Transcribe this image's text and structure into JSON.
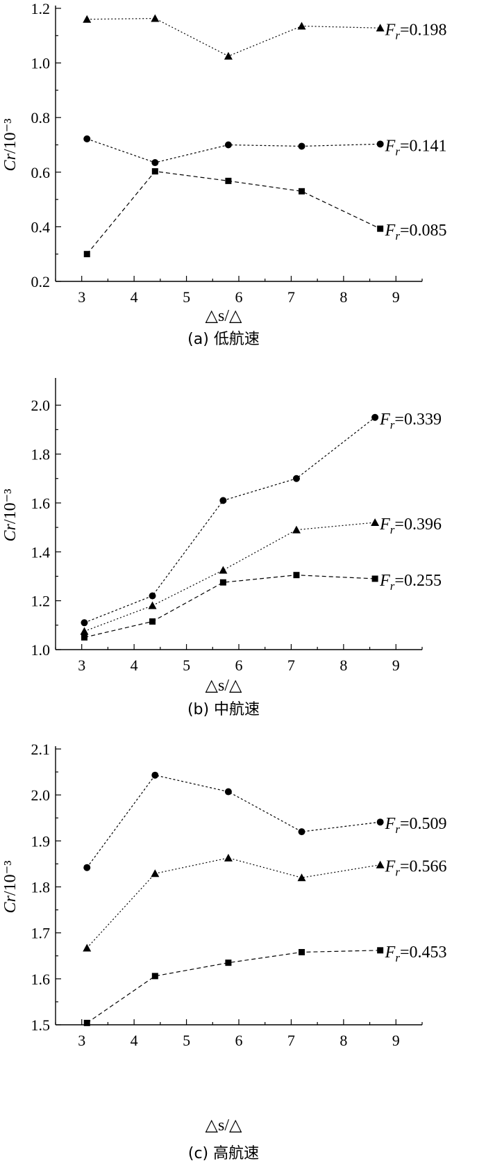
{
  "chart_data": [
    {
      "type": "line",
      "caption": "(a) 低航速",
      "xlabel": "△s/△",
      "ylabel": "Cr/10⁻³",
      "xlim": [
        2.5,
        9.5
      ],
      "ylim": [
        0.2,
        1.2
      ],
      "xticks": [
        "3",
        "4",
        "5",
        "6",
        "7",
        "8",
        "9"
      ],
      "yticks": [
        "0.2",
        "0.4",
        "0.6",
        "0.8",
        "1.0",
        "1.2"
      ],
      "series": [
        {
          "name": "0.198",
          "marker": "triangle",
          "x": [
            3.1,
            4.4,
            5.8,
            7.2,
            8.7
          ],
          "values": [
            1.16,
            1.163,
            1.025,
            1.135,
            1.128
          ]
        },
        {
          "name": "0.141",
          "marker": "circle",
          "x": [
            3.1,
            4.4,
            5.8,
            7.2,
            8.7
          ],
          "values": [
            0.722,
            0.635,
            0.7,
            0.695,
            0.703
          ]
        },
        {
          "name": "0.085",
          "marker": "square",
          "x": [
            3.1,
            4.4,
            5.8,
            7.2,
            8.7
          ],
          "values": [
            0.3,
            0.603,
            0.568,
            0.53,
            0.393
          ]
        }
      ]
    },
    {
      "type": "line",
      "caption": "(b) 中航速",
      "xlabel": "△s/△",
      "ylabel": "Cr/10⁻³",
      "xlim": [
        2.5,
        9.5
      ],
      "ylim": [
        1.0,
        2.1
      ],
      "xticks": [
        "3",
        "4",
        "5",
        "6",
        "7",
        "8",
        "9"
      ],
      "yticks": [
        "1.0",
        "1.2",
        "1.4",
        "1.6",
        "1.8",
        "2.0"
      ],
      "series": [
        {
          "name": "0.339",
          "marker": "circle",
          "x": [
            3.05,
            4.35,
            5.7,
            7.1,
            8.6
          ],
          "values": [
            1.11,
            1.22,
            1.61,
            1.7,
            1.95
          ]
        },
        {
          "name": "0.396",
          "marker": "triangle",
          "x": [
            3.05,
            4.35,
            5.7,
            7.1,
            8.6
          ],
          "values": [
            1.075,
            1.18,
            1.325,
            1.49,
            1.52
          ]
        },
        {
          "name": "0.255",
          "marker": "square",
          "x": [
            3.05,
            4.35,
            5.7,
            7.1,
            8.6
          ],
          "values": [
            1.05,
            1.115,
            1.275,
            1.305,
            1.29
          ]
        }
      ]
    },
    {
      "type": "line",
      "caption": "(c) 高航速",
      "xlabel": "△s/△",
      "ylabel": "Cr/10⁻³",
      "xlim": [
        2.5,
        9.5
      ],
      "ylim": [
        1.5,
        2.1
      ],
      "xticks": [
        "3",
        "4",
        "5",
        "6",
        "7",
        "8",
        "9"
      ],
      "yticks": [
        "1.5",
        "1.6",
        "1.7",
        "1.8",
        "1.9",
        "2.0",
        "2.1"
      ],
      "series": [
        {
          "name": "0.509",
          "marker": "circle",
          "x": [
            3.1,
            4.4,
            5.8,
            7.2,
            8.7
          ],
          "values": [
            1.842,
            2.043,
            2.007,
            1.92,
            1.941
          ]
        },
        {
          "name": "0.566",
          "marker": "triangle",
          "x": [
            3.1,
            4.4,
            5.8,
            7.2,
            8.7
          ],
          "values": [
            1.667,
            1.829,
            1.863,
            1.82,
            1.848
          ]
        },
        {
          "name": "0.453",
          "marker": "square",
          "x": [
            3.1,
            4.4,
            5.8,
            7.2,
            8.7
          ],
          "values": [
            1.504,
            1.606,
            1.635,
            1.658,
            1.662
          ]
        }
      ]
    }
  ]
}
